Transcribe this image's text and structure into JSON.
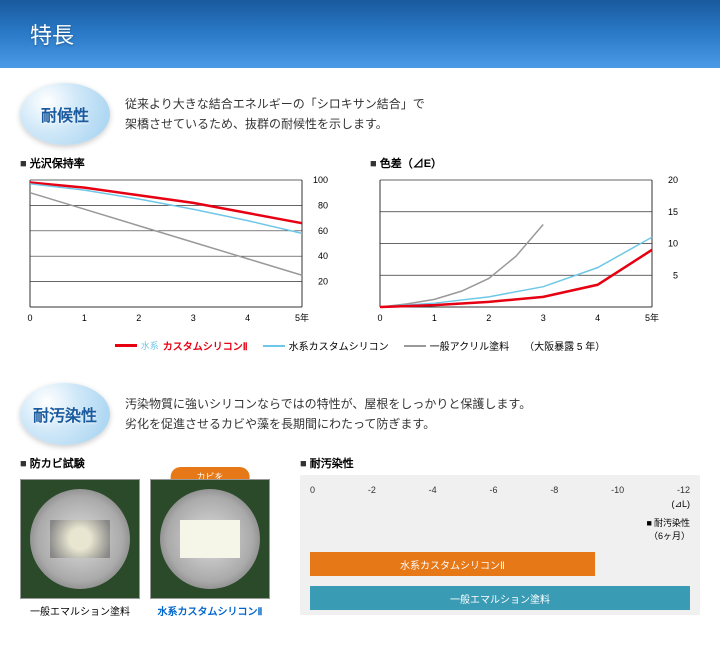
{
  "header": {
    "title": "特長"
  },
  "section1": {
    "badge": "耐候性",
    "desc_line1": "従来より大きな結合エネルギーの「シロキサン結合」で",
    "desc_line2": "架橋させているため、抜群の耐候性を示します。"
  },
  "chart1": {
    "title": "光沢保持率",
    "type": "line",
    "xlim": [
      0,
      5
    ],
    "ylim": [
      0,
      100
    ],
    "xticks": [
      0,
      1,
      2,
      3,
      4,
      5
    ],
    "yticks": [
      20,
      40,
      60,
      80,
      100
    ],
    "xlabel_suffix": "年",
    "series": [
      {
        "name": "red",
        "color": "#e60012",
        "width": 2.5,
        "data": [
          [
            0,
            98
          ],
          [
            1,
            94
          ],
          [
            2,
            88
          ],
          [
            3,
            82
          ],
          [
            4,
            74
          ],
          [
            5,
            66
          ]
        ]
      },
      {
        "name": "blue",
        "color": "#6fc7e8",
        "width": 1.5,
        "data": [
          [
            0,
            97
          ],
          [
            1,
            92
          ],
          [
            2,
            85
          ],
          [
            3,
            77
          ],
          [
            4,
            68
          ],
          [
            5,
            58
          ]
        ]
      },
      {
        "name": "gray",
        "color": "#999999",
        "width": 1.5,
        "data": [
          [
            0,
            90
          ],
          [
            1,
            77
          ],
          [
            2,
            64
          ],
          [
            3,
            51
          ],
          [
            4,
            38
          ],
          [
            5,
            25
          ]
        ]
      }
    ]
  },
  "chart2": {
    "title": "色差（⊿E）",
    "type": "line",
    "xlim": [
      0,
      5
    ],
    "ylim": [
      0,
      20
    ],
    "xticks": [
      0,
      1,
      2,
      3,
      4,
      5
    ],
    "yticks": [
      5,
      10,
      15,
      20
    ],
    "xlabel_suffix": "年",
    "series": [
      {
        "name": "gray",
        "color": "#999999",
        "width": 1.5,
        "data": [
          [
            0,
            0
          ],
          [
            0.5,
            0.5
          ],
          [
            1,
            1.2
          ],
          [
            1.5,
            2.5
          ],
          [
            2,
            4.5
          ],
          [
            2.5,
            8
          ],
          [
            3,
            13
          ]
        ]
      },
      {
        "name": "blue",
        "color": "#6fc7e8",
        "width": 1.5,
        "data": [
          [
            0,
            0
          ],
          [
            1,
            0.6
          ],
          [
            2,
            1.6
          ],
          [
            3,
            3.2
          ],
          [
            4,
            6.2
          ],
          [
            5,
            11
          ]
        ]
      },
      {
        "name": "red",
        "color": "#e60012",
        "width": 2.5,
        "data": [
          [
            0,
            0
          ],
          [
            1,
            0.3
          ],
          [
            2,
            0.8
          ],
          [
            3,
            1.6
          ],
          [
            4,
            3.5
          ],
          [
            5,
            9
          ]
        ]
      }
    ]
  },
  "legend": {
    "item1": {
      "label": "カスタムシリコンⅡ",
      "color": "#e60012",
      "prefix": "水系"
    },
    "item2": {
      "label": "水系カスタムシリコン",
      "color": "#6fc7e8"
    },
    "item3": {
      "label": "一般アクリル塗料",
      "color": "#999999"
    },
    "note": "（大阪暴露 5 年）"
  },
  "section2": {
    "badge": "耐汚染性",
    "desc_line1": "汚染物質に強いシリコンならではの特性が、屋根をしっかりと保護します。",
    "desc_line2": "劣化を促進させるカビや藻を長期間にわたって防ぎます。"
  },
  "mold_test": {
    "title": "防カビ試験",
    "callout": "カビを\nよせつけません",
    "left_label": "一般エマルション塗料",
    "right_label": "水系カスタムシリコンⅡ"
  },
  "bar_chart": {
    "title": "耐汚染性",
    "type": "horizontal-bar",
    "xticks": [
      0,
      -2,
      -4,
      -6,
      -8,
      -10,
      -12
    ],
    "xunit": "(⊿L)",
    "note": "耐汚染性\n（6ヶ月）",
    "bars": [
      {
        "label": "水系カスタムシリコンⅡ",
        "value": -9,
        "color": "#e67817"
      },
      {
        "label": "一般エマルション塗料",
        "value": -12,
        "color": "#3a9bb5"
      }
    ],
    "bg": "#f0f0f0"
  }
}
